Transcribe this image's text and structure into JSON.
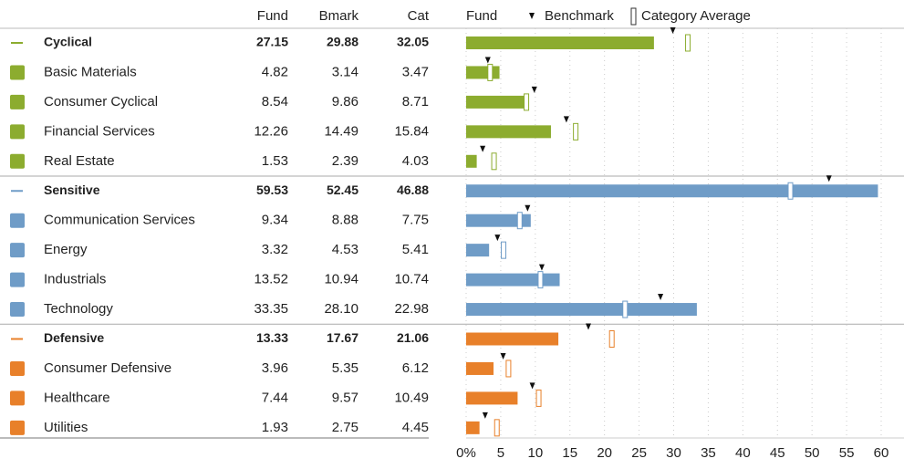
{
  "chart_data": {
    "type": "bar",
    "columns": [
      "Fund",
      "Bmark",
      "Cat"
    ],
    "categories": [
      "Cyclical",
      "Basic Materials",
      "Consumer Cyclical",
      "Financial Services",
      "Real Estate",
      "Sensitive",
      "Communication Services",
      "Energy",
      "Industrials",
      "Technology",
      "Defensive",
      "Consumer Defensive",
      "Healthcare",
      "Utilities"
    ],
    "group_rows": [
      0,
      5,
      10
    ],
    "colors": [
      "#8cac2f",
      "#8cac2f",
      "#8cac2f",
      "#8cac2f",
      "#8cac2f",
      "#6f9cc7",
      "#6f9cc7",
      "#6f9cc7",
      "#6f9cc7",
      "#6f9cc7",
      "#e8802a",
      "#e8802a",
      "#e8802a",
      "#e8802a"
    ],
    "series": [
      {
        "name": "Fund",
        "values": [
          27.15,
          4.82,
          8.54,
          12.26,
          1.53,
          59.53,
          9.34,
          3.32,
          13.52,
          33.35,
          13.33,
          3.96,
          7.44,
          1.93
        ],
        "value_labels": [
          "27.15",
          "4.82",
          "8.54",
          "12.26",
          "1.53",
          "59.53",
          "9.34",
          "3.32",
          "13.52",
          "33.35",
          "13.33",
          "3.96",
          "7.44",
          "1.93"
        ]
      },
      {
        "name": "Benchmark",
        "values": [
          29.88,
          3.14,
          9.86,
          14.49,
          2.39,
          52.45,
          8.88,
          4.53,
          10.94,
          28.1,
          17.67,
          5.35,
          9.57,
          2.75
        ],
        "value_labels": [
          "29.88",
          "3.14",
          "9.86",
          "14.49",
          "2.39",
          "52.45",
          "8.88",
          "4.53",
          "10.94",
          "28.10",
          "17.67",
          "5.35",
          "9.57",
          "2.75"
        ]
      },
      {
        "name": "Category Average",
        "values": [
          32.05,
          3.47,
          8.71,
          15.84,
          4.03,
          46.88,
          7.75,
          5.41,
          10.74,
          22.98,
          21.06,
          6.12,
          10.49,
          4.45
        ],
        "value_labels": [
          "32.05",
          "3.47",
          "8.71",
          "15.84",
          "4.03",
          "46.88",
          "7.75",
          "5.41",
          "10.74",
          "22.98",
          "21.06",
          "6.12",
          "10.49",
          "4.45"
        ]
      }
    ],
    "xlim": [
      0,
      60
    ],
    "xticks": [
      {
        "value": 0,
        "label": "0%"
      },
      5,
      10,
      15,
      20,
      25,
      30,
      35,
      40,
      45,
      50,
      55,
      60
    ],
    "grid": true
  }
}
